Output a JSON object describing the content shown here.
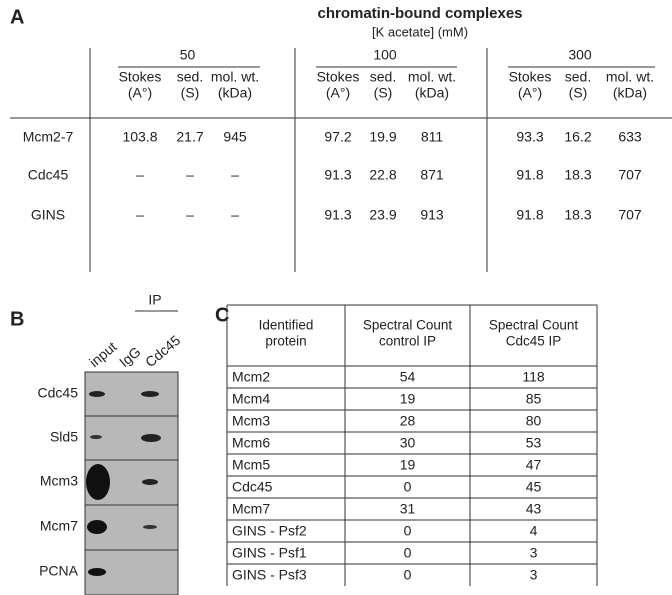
{
  "panel_a": {
    "label": "A",
    "title": "chromatin-bound complexes",
    "subtitle": "[K acetate] (mM)",
    "groups": [
      "50",
      "100",
      "300"
    ],
    "columns": [
      [
        "Stokes",
        "(A°)"
      ],
      [
        "sed.",
        "(S)"
      ],
      [
        "mol. wt.",
        "(kDa)"
      ]
    ],
    "rows": [
      {
        "name": "Mcm2-7",
        "cells": [
          "103.8",
          "21.7",
          "945",
          "97.2",
          "19.9",
          "811",
          "93.3",
          "16.2",
          "633"
        ]
      },
      {
        "name": "Cdc45",
        "cells": [
          "–",
          "–",
          "–",
          "91.3",
          "22.8",
          "871",
          "91.8",
          "18.3",
          "707"
        ]
      },
      {
        "name": "GINS",
        "cells": [
          "–",
          "–",
          "–",
          "91.3",
          "23.9",
          "913",
          "91.8",
          "18.3",
          "707"
        ]
      }
    ]
  },
  "panel_b": {
    "label": "B",
    "ip_label": "IP",
    "lanes": [
      "input",
      "IgG",
      "Cdc45"
    ],
    "rows": [
      "Cdc45",
      "Sld5",
      "Mcm3",
      "Mcm7",
      "PCNA"
    ]
  },
  "panel_c": {
    "label": "C",
    "header": [
      [
        "Identified",
        "protein"
      ],
      [
        "Spectral Count",
        "control IP"
      ],
      [
        "Spectral Count",
        "Cdc45 IP"
      ]
    ],
    "rows": [
      [
        "Mcm2",
        "54",
        "118"
      ],
      [
        "Mcm4",
        "19",
        "85"
      ],
      [
        "Mcm3",
        "28",
        "80"
      ],
      [
        "Mcm6",
        "30",
        "53"
      ],
      [
        "Mcm5",
        "19",
        "47"
      ],
      [
        "Cdc45",
        "0",
        "45"
      ],
      [
        "Mcm7",
        "31",
        "43"
      ],
      [
        "GINS - Psf2",
        "0",
        "4"
      ],
      [
        "GINS - Psf1",
        "0",
        "3"
      ],
      [
        "GINS - Psf3",
        "0",
        "3"
      ]
    ]
  }
}
